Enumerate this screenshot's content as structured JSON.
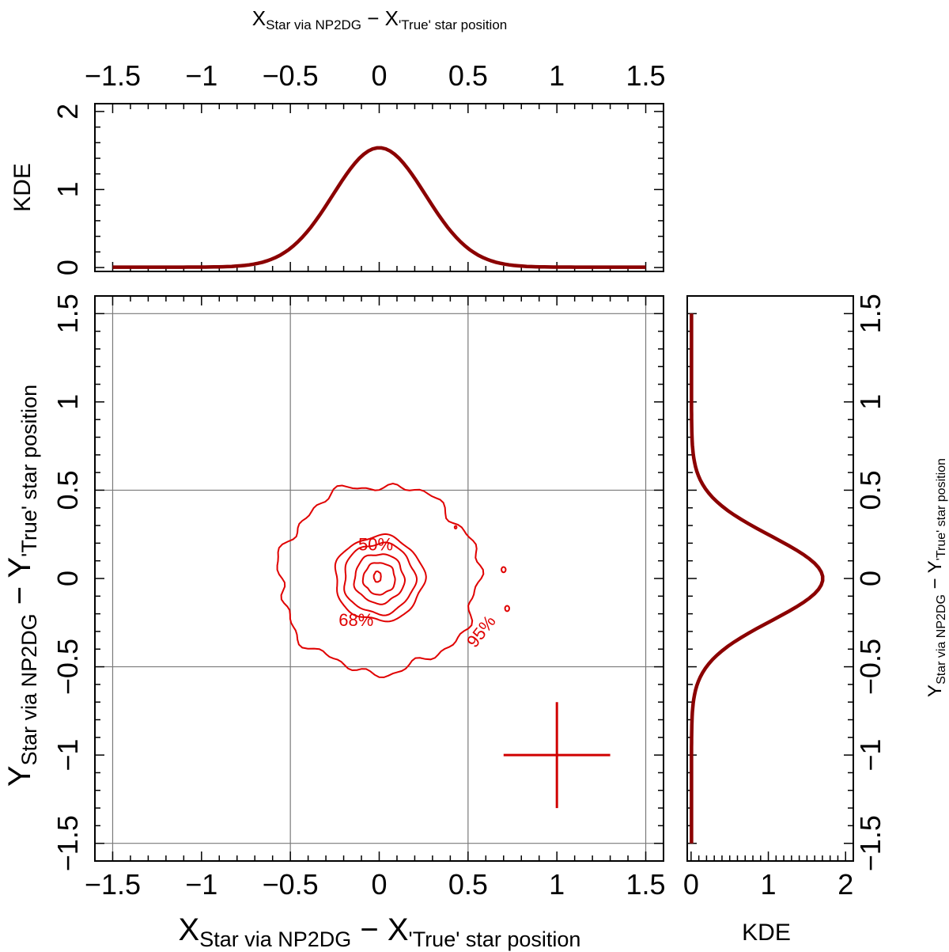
{
  "colors": {
    "kde": "#8b0000",
    "contour": "#e00000",
    "grid": "#7a7a7a",
    "cross": "#d00000"
  },
  "labels": {
    "top_xlabel_main": "X",
    "top_xlabel_sub1": "Star via NP2DG",
    "top_xlabel_sep": " − X",
    "top_xlabel_sub2": "'True' star position",
    "bottom_xlabel_main": "X",
    "bottom_xlabel_sub1": "Star via NP2DG",
    "bottom_xlabel_sep": " − X",
    "bottom_xlabel_sub2": "'True' star position",
    "left_ylabel_main": "Y",
    "left_ylabel_sub1": "Star via NP2DG",
    "left_ylabel_sep": " − Y",
    "left_ylabel_sub2": "'True' star position",
    "right_ylabel_main": "Y",
    "right_ylabel_sub1": "Star via NP2DG",
    "right_ylabel_sep": " − Y",
    "right_ylabel_sub2": "'True' star position",
    "top_panel_ylabel": "KDE",
    "right_panel_xlabel": "KDE"
  },
  "chart_data": [
    {
      "panel": "top-marginal",
      "type": "line",
      "x_ticks": [
        "−1.5",
        "−1",
        "−0.5",
        "0",
        "0.5",
        "1",
        "1.5"
      ],
      "x_tick_values": [
        -1.5,
        -1,
        -0.5,
        0,
        0.5,
        1,
        1.5
      ],
      "y_ticks": [
        "0",
        "1",
        "2"
      ],
      "y_tick_values": [
        0,
        1,
        2
      ],
      "xlim": [
        -1.6,
        1.6
      ],
      "ylim": [
        -0.05,
        2.1
      ],
      "series": [
        {
          "peak_x": 0.0,
          "peak_y": 1.53,
          "sigma": 0.26,
          "points": 121
        }
      ]
    },
    {
      "panel": "main-scatter-contours",
      "type": "scatter",
      "x_ticks": [
        "−1.5",
        "−1",
        "−0.5",
        "0",
        "0.5",
        "1",
        "1.5"
      ],
      "x_tick_values": [
        -1.5,
        -1,
        -0.5,
        0,
        0.5,
        1,
        1.5
      ],
      "y_ticks": [
        "−1.5",
        "−1",
        "−0.5",
        "0",
        "0.5",
        "1",
        "1.5"
      ],
      "y_tick_values": [
        -1.5,
        -1,
        -0.5,
        0,
        0.5,
        1,
        1.5
      ],
      "xlim": [
        -1.6,
        1.6
      ],
      "ylim": [
        -1.6,
        1.6
      ],
      "grid_x": [
        -1.5,
        -0.5,
        0.5,
        1.5
      ],
      "grid_y": [
        -1.5,
        -0.5,
        0.5,
        1.5
      ],
      "contours": [
        {
          "level": "95%",
          "rx": 0.56,
          "ry": 0.53,
          "cx": 0.0,
          "cy": 0.0
        },
        {
          "level": "",
          "rx": 0.25,
          "ry": 0.24,
          "cx": 0.0,
          "cy": 0.0
        },
        {
          "level": "68%",
          "rx": 0.2,
          "ry": 0.2,
          "cx": 0.0,
          "cy": 0.0
        },
        {
          "level": "50%",
          "rx": 0.14,
          "ry": 0.14,
          "cx": 0.0,
          "cy": 0.0
        },
        {
          "level": "",
          "rx": 0.09,
          "ry": 0.09,
          "cx": 0.0,
          "cy": 0.0
        },
        {
          "level": "",
          "rx": 0.02,
          "ry": 0.03,
          "cx": -0.01,
          "cy": 0.01
        }
      ],
      "contour_labels": [
        {
          "text": "50%",
          "x": -0.02,
          "y": 0.16
        },
        {
          "text": "68%",
          "x": -0.13,
          "y": -0.27
        },
        {
          "text": "95%",
          "x": 0.6,
          "y": -0.32
        }
      ],
      "error_cross": {
        "x": 1.0,
        "y": -1.0,
        "half_width": 0.3,
        "half_height": 0.3
      }
    },
    {
      "panel": "right-marginal",
      "type": "line",
      "x_ticks": [
        "0",
        "1",
        "2"
      ],
      "x_tick_values": [
        0,
        1,
        2
      ],
      "y_ticks": [
        "−1.5",
        "−1",
        "−0.5",
        "0",
        "0.5",
        "1",
        "1.5"
      ],
      "y_tick_values": [
        -1.5,
        -1,
        -0.5,
        0,
        0.5,
        1,
        1.5
      ],
      "xlim": [
        -0.05,
        2.1
      ],
      "ylim": [
        -1.6,
        1.6
      ],
      "series": [
        {
          "peak_y": 0.0,
          "peak_x": 1.7,
          "sigma": 0.24,
          "points": 121
        }
      ]
    }
  ]
}
